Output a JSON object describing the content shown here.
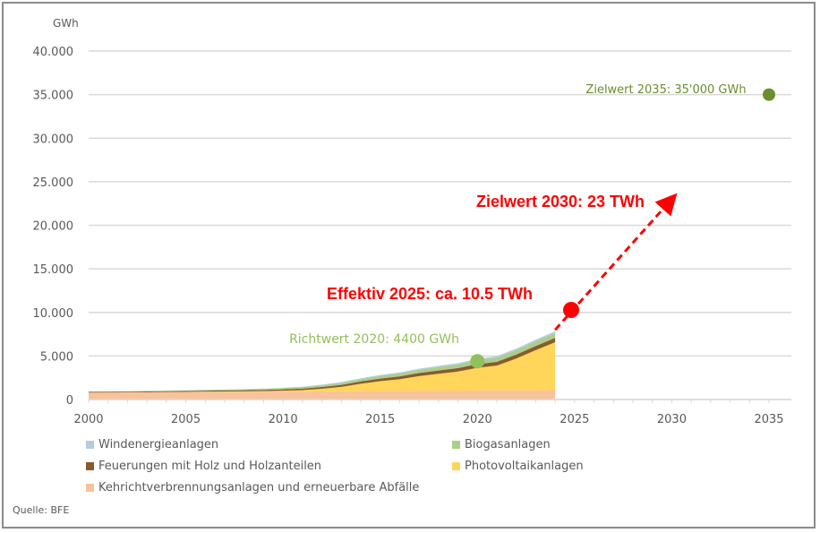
{
  "chart_data": {
    "type": "area",
    "title": "",
    "ylabel": "GWh",
    "xlabel": "",
    "ylim": [
      0,
      40000
    ],
    "xlim": [
      2000,
      2035
    ],
    "grid": true,
    "legend_position": "bottom",
    "y_ticks": [
      "0",
      "5.000",
      "10.000",
      "15.000",
      "20.000",
      "25.000",
      "30.000",
      "35.000",
      "40.000"
    ],
    "y_tick_values": [
      0,
      5000,
      10000,
      15000,
      20000,
      25000,
      30000,
      35000,
      40000
    ],
    "x_ticks": [
      "2000",
      "2005",
      "2010",
      "2015",
      "2020",
      "2025",
      "2030",
      "2035"
    ],
    "x_tick_values": [
      2000,
      2005,
      2010,
      2015,
      2020,
      2025,
      2030,
      2035
    ],
    "x": [
      2000,
      2001,
      2002,
      2003,
      2004,
      2005,
      2006,
      2007,
      2008,
      2009,
      2010,
      2011,
      2012,
      2013,
      2014,
      2015,
      2016,
      2017,
      2018,
      2019,
      2020,
      2021,
      2022,
      2023,
      2024
    ],
    "series": [
      {
        "name": "Kehrichtverbrennungsanlagen und erneuerbare Abfälle",
        "color": "#f8c39b",
        "values": [
          800,
          810,
          820,
          830,
          840,
          850,
          860,
          870,
          880,
          890,
          900,
          910,
          930,
          950,
          970,
          990,
          1000,
          1010,
          1020,
          1030,
          1040,
          1050,
          1060,
          1070,
          1080
        ]
      },
      {
        "name": "Photovoltaikanlagen",
        "color": "#ffd55a",
        "values": [
          0,
          0,
          0,
          10,
          20,
          30,
          40,
          50,
          60,
          80,
          110,
          170,
          300,
          500,
          840,
          1120,
          1330,
          1680,
          1940,
          2180,
          2600,
          2840,
          3650,
          4600,
          5500
        ]
      },
      {
        "name": "Feuerungen mit Holz und Holzanteilen",
        "color": "#8b5a2b",
        "values": [
          80,
          80,
          85,
          90,
          95,
          100,
          110,
          120,
          130,
          140,
          160,
          180,
          210,
          240,
          270,
          300,
          330,
          360,
          380,
          400,
          420,
          440,
          460,
          480,
          500
        ]
      },
      {
        "name": "Biogasanlagen",
        "color": "#a9cf8b",
        "values": [
          40,
          45,
          50,
          60,
          70,
          80,
          90,
          100,
          110,
          130,
          150,
          170,
          200,
          230,
          260,
          300,
          330,
          360,
          390,
          420,
          450,
          480,
          510,
          540,
          570
        ]
      },
      {
        "name": "Windenergieanlagen",
        "color": "#b4cbe4",
        "values": [
          5,
          5,
          5,
          10,
          10,
          10,
          15,
          20,
          20,
          25,
          30,
          50,
          70,
          90,
          100,
          110,
          120,
          130,
          140,
          150,
          150,
          160,
          170,
          180,
          190
        ]
      }
    ],
    "markers": [
      {
        "name": "Richtwert 2020",
        "x": 2020,
        "y": 4400,
        "color": "#92c05a",
        "label": "Richtwert 2020: 4400 GWh",
        "label_color": "#92c05a"
      },
      {
        "name": "Zielwert 2035",
        "x": 2035,
        "y": 35000,
        "color": "#6b8e2f",
        "label": "Zielwert 2035: 35'000 GWh",
        "label_color": "#6b8e2f"
      },
      {
        "name": "Effektiv 2025",
        "x": 2025,
        "y": 10500,
        "color": "#ff0000",
        "label": "Effektiv 2025: ca. 10.5 TWh",
        "label_color": "#ff0000"
      }
    ],
    "projection": {
      "from": {
        "x": 2024,
        "y": 8000
      },
      "to": {
        "x": 2030,
        "y": 23000
      },
      "color": "#ff0000",
      "label": "Zielwert 2030: 23 TWh"
    },
    "legend": [
      {
        "label": "Windenergieanlagen",
        "color": "#b4cbe4"
      },
      {
        "label": "Biogasanlagen",
        "color": "#a9cf8b"
      },
      {
        "label": "Feuerungen mit Holz und Holzanteilen",
        "color": "#8b5a2b"
      },
      {
        "label": "Photovoltaikanlagen",
        "color": "#ffd55a"
      },
      {
        "label": "Kehrichtverbrennungsanlagen und erneuerbare Abfälle",
        "color": "#f8c39b"
      }
    ]
  },
  "source": "Quelle: BFE"
}
